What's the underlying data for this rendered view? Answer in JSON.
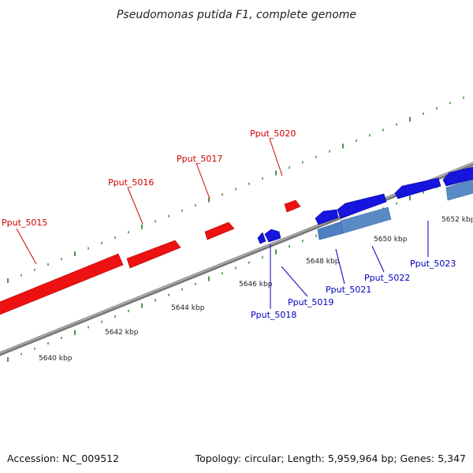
{
  "header": {
    "title": "Pseudomonas putida F1, complete genome"
  },
  "footer": {
    "accession": "Accession: NC_009512",
    "summary": "Topology: circular; Length: 5,959,964 bp; Genes: 5,347"
  },
  "colors": {
    "forward_gene": "#ee1111",
    "reverse_gene": "#1515dd",
    "rna_feature": "#4f7fbf",
    "backbone": "#8a8a8a",
    "tick": "#1e7a1e",
    "forward_label": "#cc0000",
    "reverse_label": "#0000bb"
  },
  "genes_forward": [
    {
      "id": "Pput_5015",
      "label": "Pput_5015"
    },
    {
      "id": "Pput_5016",
      "label": "Pput_5016"
    },
    {
      "id": "Pput_5017",
      "label": "Pput_5017"
    },
    {
      "id": "Pput_5020",
      "label": "Pput_5020"
    }
  ],
  "genes_reverse": [
    {
      "id": "Pput_5018",
      "label": "Pput_5018"
    },
    {
      "id": "Pput_5019",
      "label": "Pput_5019"
    },
    {
      "id": "Pput_5021",
      "label": "Pput_5021"
    },
    {
      "id": "Pput_5022",
      "label": "Pput_5022"
    },
    {
      "id": "Pput_5023",
      "label": "Pput_5023"
    }
  ],
  "scale_labels": [
    "5640 kbp",
    "5642 kbp",
    "5644 kbp",
    "5646 kbp",
    "5648 kbp",
    "5650 kbp",
    "5652 kbp"
  ]
}
